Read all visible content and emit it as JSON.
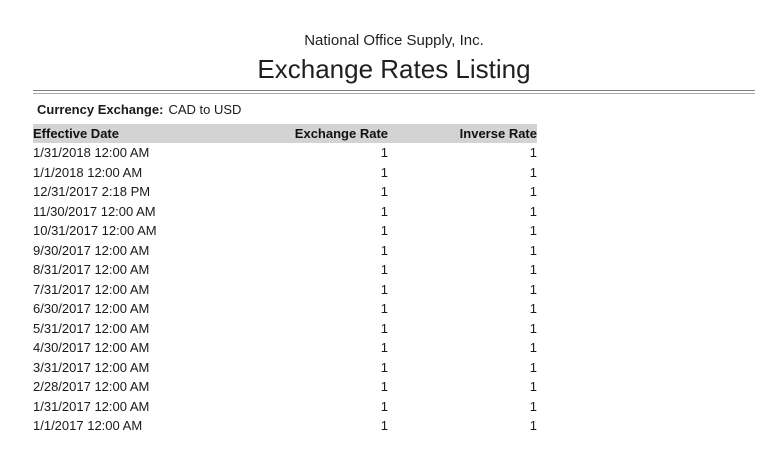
{
  "report": {
    "company_name": "National Office Supply, Inc.",
    "title": "Exchange Rates Listing",
    "currency_exchange_label": "Currency Exchange:",
    "currency_exchange_value": "CAD to USD"
  },
  "table": {
    "columns": [
      {
        "key": "effective_date",
        "label": "Effective Date"
      },
      {
        "key": "exchange_rate",
        "label": "Exchange Rate"
      },
      {
        "key": "inverse_rate",
        "label": "Inverse Rate"
      }
    ],
    "rows": [
      {
        "effective_date": "1/31/2018 12:00 AM",
        "exchange_rate": "1",
        "inverse_rate": "1"
      },
      {
        "effective_date": "1/1/2018 12:00 AM",
        "exchange_rate": "1",
        "inverse_rate": "1"
      },
      {
        "effective_date": "12/31/2017 2:18 PM",
        "exchange_rate": "1",
        "inverse_rate": "1"
      },
      {
        "effective_date": "11/30/2017 12:00 AM",
        "exchange_rate": "1",
        "inverse_rate": "1"
      },
      {
        "effective_date": "10/31/2017 12:00 AM",
        "exchange_rate": "1",
        "inverse_rate": "1"
      },
      {
        "effective_date": "9/30/2017 12:00 AM",
        "exchange_rate": "1",
        "inverse_rate": "1"
      },
      {
        "effective_date": "8/31/2017 12:00 AM",
        "exchange_rate": "1",
        "inverse_rate": "1"
      },
      {
        "effective_date": "7/31/2017 12:00 AM",
        "exchange_rate": "1",
        "inverse_rate": "1"
      },
      {
        "effective_date": "6/30/2017 12:00 AM",
        "exchange_rate": "1",
        "inverse_rate": "1"
      },
      {
        "effective_date": "5/31/2017 12:00 AM",
        "exchange_rate": "1",
        "inverse_rate": "1"
      },
      {
        "effective_date": "4/30/2017 12:00 AM",
        "exchange_rate": "1",
        "inverse_rate": "1"
      },
      {
        "effective_date": "3/31/2017 12:00 AM",
        "exchange_rate": "1",
        "inverse_rate": "1"
      },
      {
        "effective_date": "2/28/2017 12:00 AM",
        "exchange_rate": "1",
        "inverse_rate": "1"
      },
      {
        "effective_date": "1/31/2017 12:00 AM",
        "exchange_rate": "1",
        "inverse_rate": "1"
      },
      {
        "effective_date": "1/1/2017 12:00 AM",
        "exchange_rate": "1",
        "inverse_rate": "1"
      }
    ]
  },
  "colors": {
    "header_row_bg": "#d3d3d3",
    "rule_top": "#7f7f7f",
    "rule_bottom": "#a8a8a8",
    "text": "#1a1a1a"
  }
}
